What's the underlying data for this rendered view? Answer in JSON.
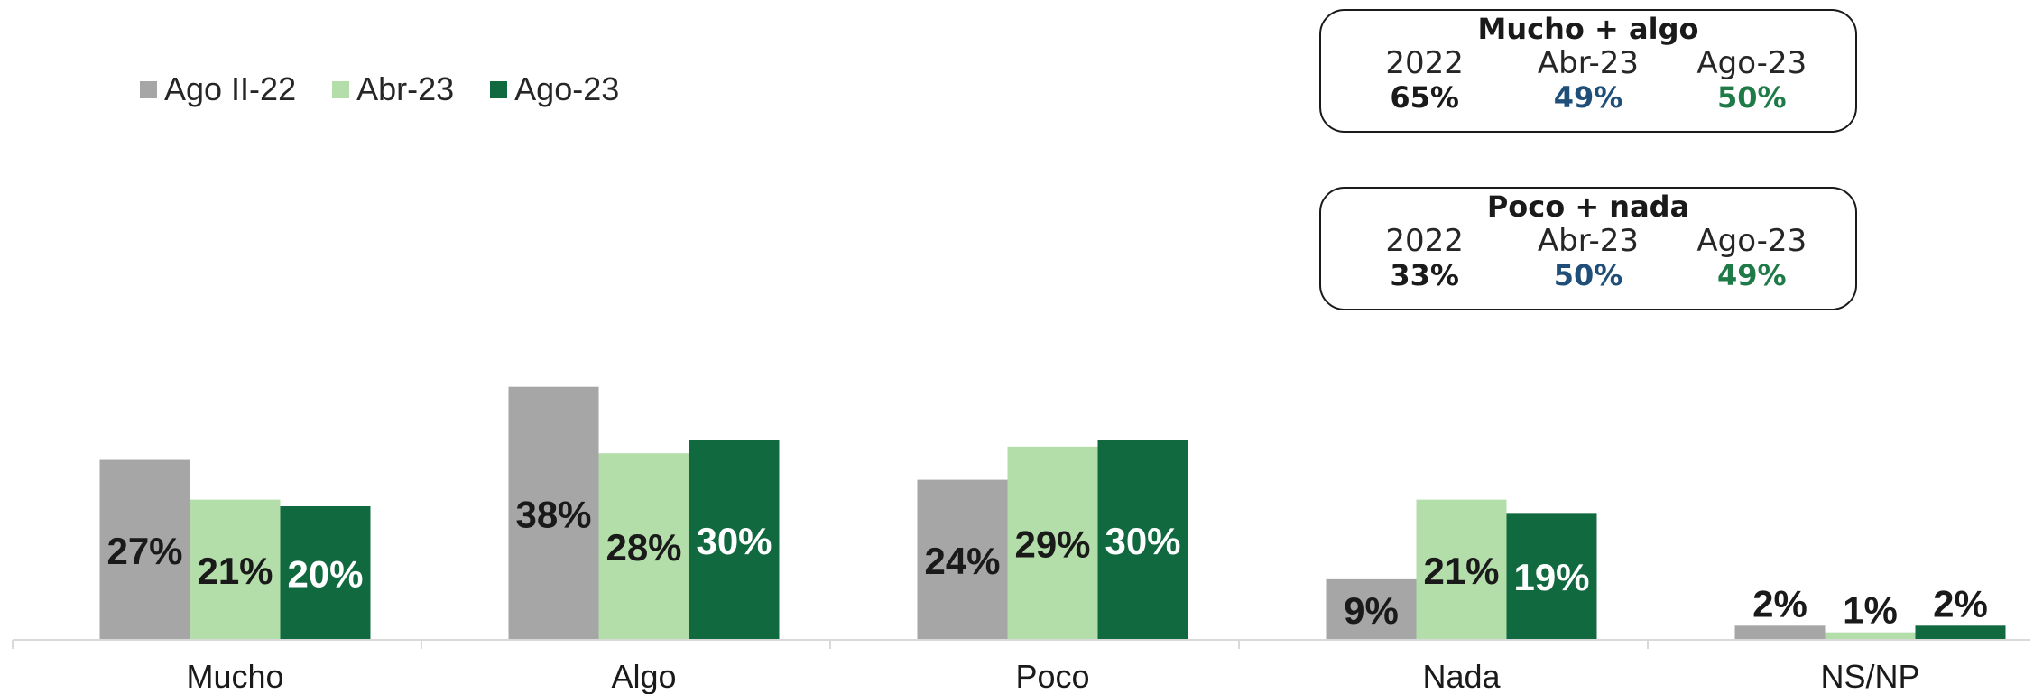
{
  "chart_data": {
    "type": "bar",
    "categories": [
      "Mucho",
      "Algo",
      "Poco",
      "Nada",
      "NS/NP"
    ],
    "series": [
      {
        "name": "Ago II-22",
        "values": [
          27,
          38,
          24,
          9,
          2
        ],
        "color": "#a6a6a6",
        "label_color": "#1a1a1a"
      },
      {
        "name": "Abr-23",
        "values": [
          21,
          28,
          29,
          21,
          1
        ],
        "color": "#b3deaa",
        "label_color": "#1a1a1a"
      },
      {
        "name": "Ago-23",
        "values": [
          20,
          30,
          30,
          19,
          2
        ],
        "color": "#116940",
        "label_color": "#ffffff"
      }
    ],
    "value_suffix": "%",
    "ylim": [
      0,
      40
    ],
    "grid": false,
    "legend_position": "top-left",
    "title": "",
    "xlabel": "",
    "ylabel": ""
  },
  "summary_boxes": [
    {
      "title": "Mucho + algo",
      "columns": [
        {
          "label": "2022",
          "value": "65%",
          "color": "#1a1a1a"
        },
        {
          "label": "Abr-23",
          "value": "49%",
          "color": "#1f4e79"
        },
        {
          "label": "Ago-23",
          "value": "50%",
          "color": "#1e7a46"
        }
      ]
    },
    {
      "title": "Poco + nada",
      "columns": [
        {
          "label": "2022",
          "value": "33%",
          "color": "#1a1a1a"
        },
        {
          "label": "Abr-23",
          "value": "50%",
          "color": "#1f4e79"
        },
        {
          "label": "Ago-23",
          "value": "49%",
          "color": "#1e7a46"
        }
      ]
    }
  ]
}
